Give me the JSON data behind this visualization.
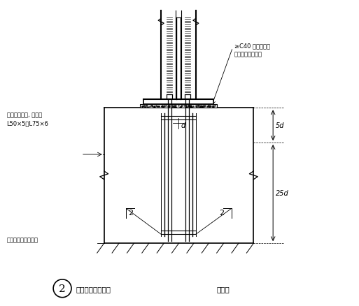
{
  "bg_color": "#ffffff",
  "line_color": "#000000",
  "title_num": "2",
  "title_text": "柱脚锚栓固定支架",
  "title_suffix": "（二）",
  "label_angle_steel": "锚栓固定角钢, 通常用",
  "label_angle_steel2": "L50×5～L75×6",
  "label_c40": "≥C40 无收缩碎石",
  "label_c40_2": "混凝土或砂浆充塞",
  "label_bottom": "锚栓固定架设置标高",
  "dim_5d": "5d",
  "dim_25d": "25d",
  "dim_d": "d"
}
